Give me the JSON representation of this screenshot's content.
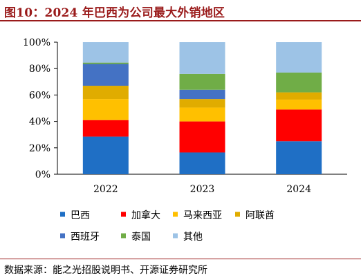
{
  "figure": {
    "title": "图10：2024 年巴西为公司最大外销地区",
    "source": "数据来源：能之光招股说明书、开源证券研究所",
    "title_color": "#9a1b1b"
  },
  "chart_data": {
    "type": "bar",
    "stacked": true,
    "percent": true,
    "categories": [
      "2022",
      "2023",
      "2024"
    ],
    "ylim": [
      0,
      100
    ],
    "yticks": [
      "0%",
      "20%",
      "40%",
      "60%",
      "80%",
      "100%"
    ],
    "series": [
      {
        "name": "巴西",
        "color": "#1f6fc5",
        "values": [
          28.5,
          16.5,
          25.0
        ]
      },
      {
        "name": "加拿大",
        "color": "#ff0000",
        "values": [
          12.5,
          23.5,
          24.0
        ]
      },
      {
        "name": "马来西亚",
        "color": "#ffc000",
        "values": [
          16.0,
          10.5,
          7.5
        ]
      },
      {
        "name": "阿联酋",
        "color": "#e0ac00",
        "values": [
          10.0,
          6.5,
          5.5
        ]
      },
      {
        "name": "西班牙",
        "color": "#4472c4",
        "values": [
          16.5,
          7.0,
          0.0
        ]
      },
      {
        "name": "泰国",
        "color": "#70ad47",
        "values": [
          1.0,
          12.0,
          15.0
        ]
      },
      {
        "name": "其他",
        "color": "#9dc3e6",
        "values": [
          15.5,
          24.0,
          23.0
        ]
      }
    ],
    "legend": "bottom",
    "grid": false
  }
}
